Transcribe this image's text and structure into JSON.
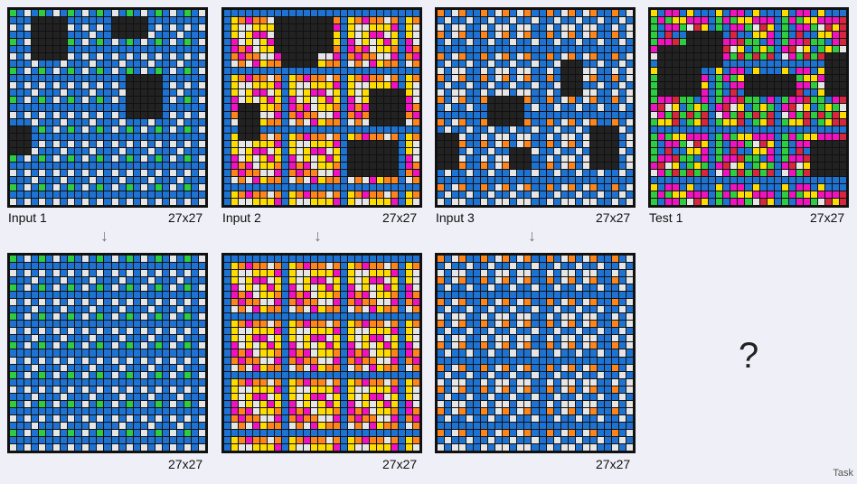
{
  "panels": [
    {
      "id": "input-1",
      "label": "Input 1",
      "size": "27x27"
    },
    {
      "id": "input-2",
      "label": "Input 2",
      "size": "27x27"
    },
    {
      "id": "input-3",
      "label": "Input 3",
      "size": "27x27"
    },
    {
      "id": "test-1",
      "label": "Test 1",
      "size": "27x27"
    },
    {
      "id": "output-1",
      "label": "",
      "size": "27x27"
    },
    {
      "id": "output-2",
      "label": "",
      "size": "27x27"
    },
    {
      "id": "output-3",
      "label": "",
      "size": "27x27"
    }
  ],
  "arrow_glyph": "↓",
  "unknown_glyph": "?",
  "footer_label": "Task",
  "colors": {
    "black": "#222222",
    "blue": "#1e73d2",
    "green": "#2ecc40",
    "gray": "#e6e6e6",
    "magenta": "#f012be",
    "yellow": "#ffdc00",
    "orange": "#ff851b",
    "red": "#d7263d"
  }
}
